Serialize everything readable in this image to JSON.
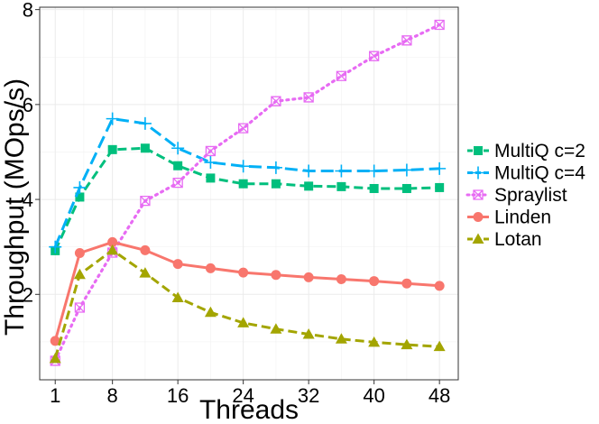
{
  "chart_data": {
    "type": "line",
    "title": "",
    "xlabel": "Threads",
    "ylabel": "Throughput (MOps/s)",
    "xlim": [
      -0.9,
      50.3
    ],
    "ylim": [
      0.2,
      8.05
    ],
    "xticks": [
      1,
      8,
      16,
      24,
      32,
      40,
      48
    ],
    "xtick_labels": [
      "1",
      "8",
      "16",
      "24",
      "32",
      "40",
      "48"
    ],
    "yticks": [
      2,
      4,
      6,
      8
    ],
    "ytick_labels": [
      "2",
      "4",
      "6",
      "8"
    ],
    "grid": true,
    "legend_position": "right",
    "series": [
      {
        "name": "MultiQ c=2",
        "color": "#00BF7D",
        "linestyle": "dashed",
        "marker": "square",
        "x": [
          1,
          4,
          8,
          12,
          16,
          20,
          24,
          28,
          32,
          36,
          40,
          44,
          48
        ],
        "values": [
          2.92,
          4.05,
          5.05,
          5.08,
          4.71,
          4.45,
          4.33,
          4.33,
          4.28,
          4.27,
          4.23,
          4.23,
          4.25
        ]
      },
      {
        "name": "MultiQ c=4",
        "color": "#00B0F6",
        "linestyle": "longdash",
        "marker": "plus",
        "x": [
          1,
          4,
          8,
          12,
          16,
          20,
          24,
          28,
          32,
          36,
          40,
          44,
          48
        ],
        "values": [
          3.0,
          4.25,
          5.7,
          5.6,
          5.08,
          4.78,
          4.7,
          4.67,
          4.6,
          4.6,
          4.6,
          4.62,
          4.65
        ]
      },
      {
        "name": "Spraylist",
        "color": "#E76BF3",
        "linestyle": "dotted",
        "marker": "square-x",
        "x": [
          1,
          4,
          8,
          12,
          16,
          20,
          24,
          28,
          32,
          36,
          40,
          44,
          48
        ],
        "values": [
          0.6,
          1.72,
          2.88,
          3.97,
          4.35,
          5.02,
          5.5,
          6.07,
          6.15,
          6.6,
          7.02,
          7.35,
          7.68
        ]
      },
      {
        "name": "Linden",
        "color": "#F8766D",
        "linestyle": "solid",
        "marker": "circle",
        "x": [
          1,
          4,
          8,
          12,
          16,
          20,
          24,
          28,
          32,
          36,
          40,
          44,
          48
        ],
        "values": [
          1.02,
          2.87,
          3.1,
          2.93,
          2.64,
          2.55,
          2.46,
          2.41,
          2.36,
          2.32,
          2.28,
          2.23,
          2.18
        ]
      },
      {
        "name": "Lotan",
        "color": "#A3A500",
        "linestyle": "dashed",
        "marker": "triangle",
        "x": [
          1,
          4,
          8,
          12,
          16,
          20,
          24,
          28,
          32,
          36,
          40,
          44,
          48
        ],
        "values": [
          0.65,
          2.42,
          2.93,
          2.45,
          1.93,
          1.62,
          1.4,
          1.27,
          1.16,
          1.06,
          0.99,
          0.94,
          0.9
        ]
      }
    ]
  }
}
